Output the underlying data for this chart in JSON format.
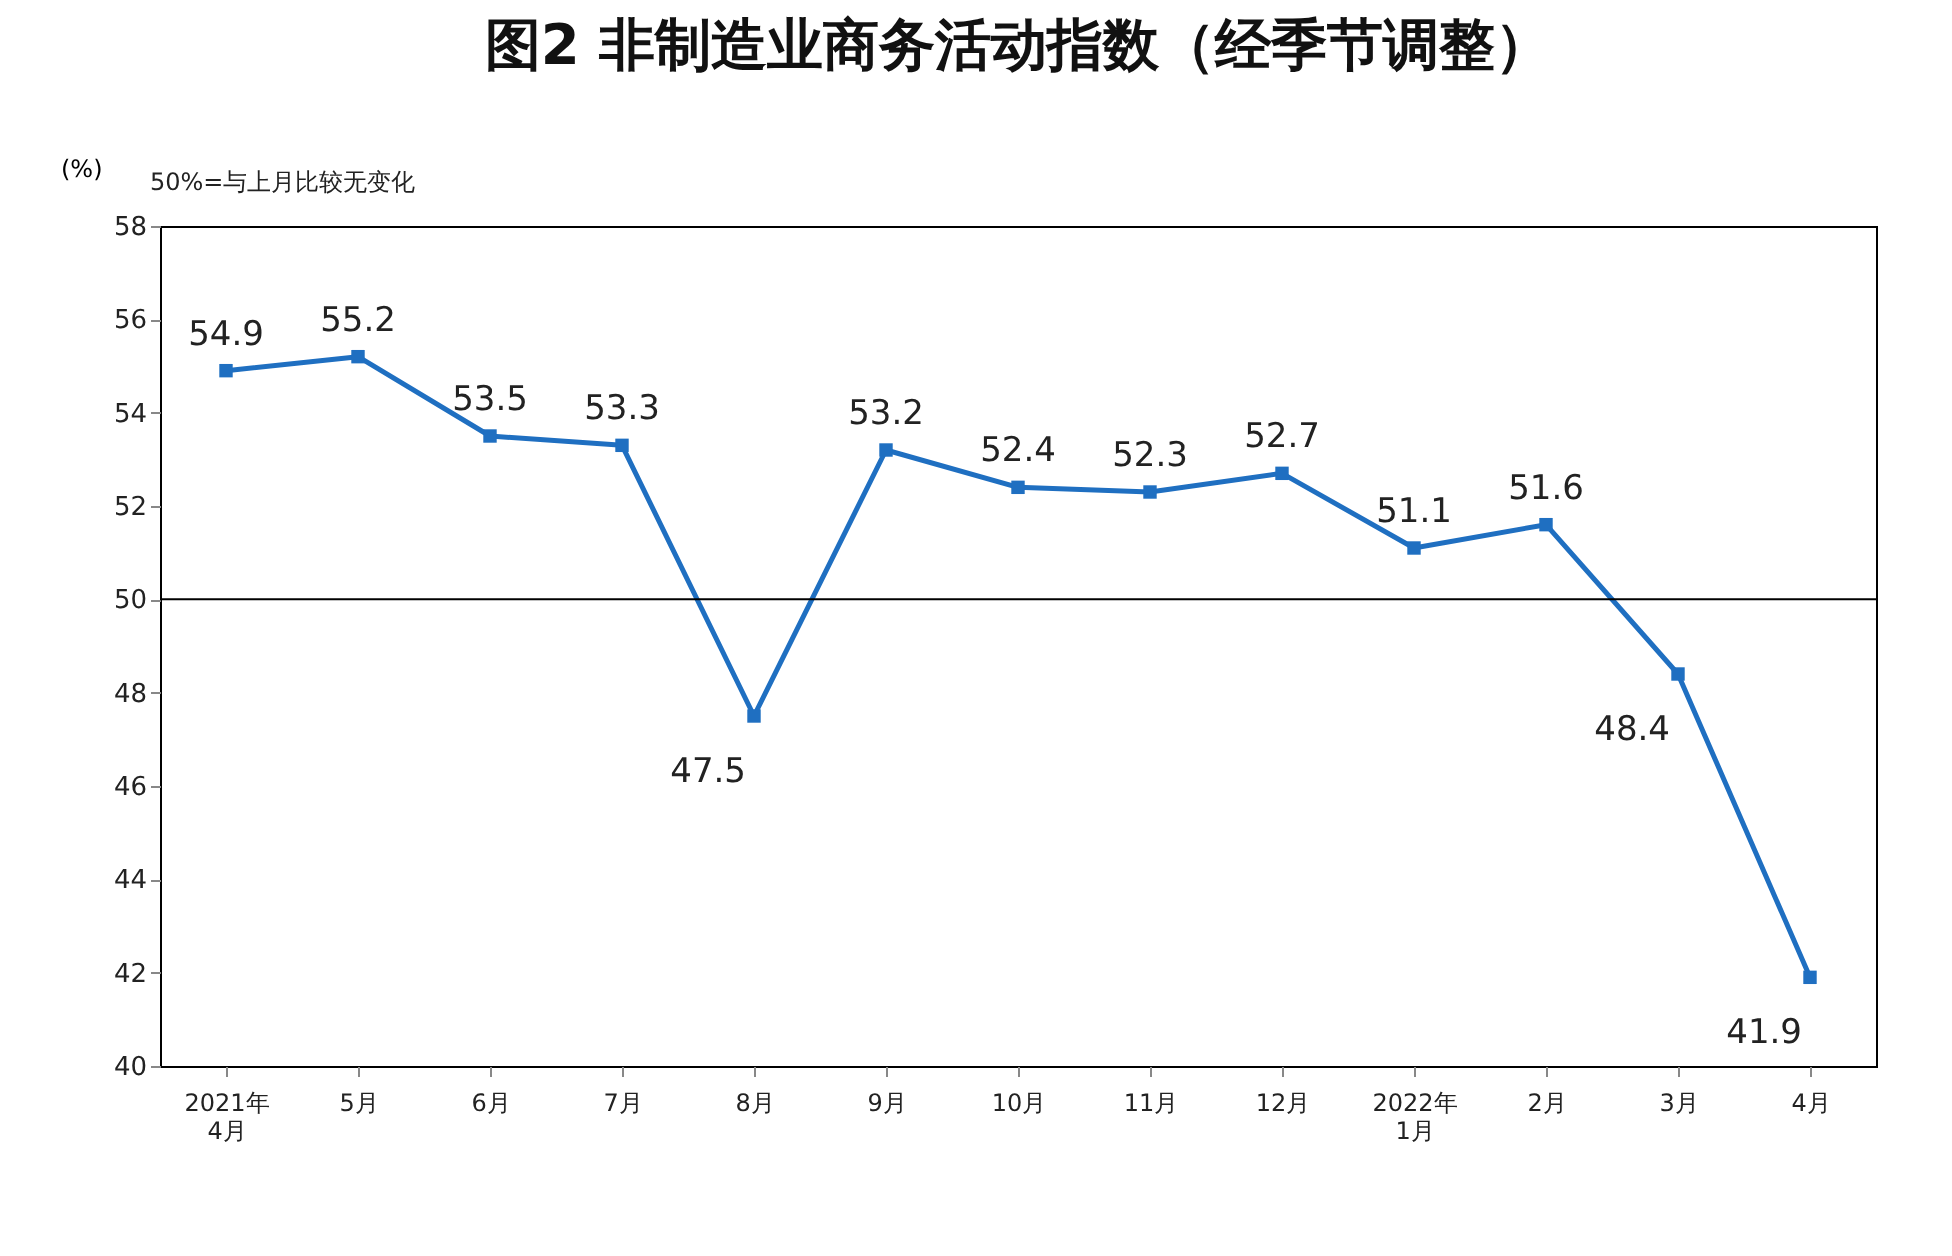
{
  "chart_data": {
    "type": "line",
    "title": "图2 非制造业商务活动指数（经季节调整）",
    "ylabel": "(%)",
    "annotations": [
      "50%=与上月比较无变化"
    ],
    "categories": [
      "2021年\n4月",
      "5月",
      "6月",
      "7月",
      "8月",
      "9月",
      "10月",
      "11月",
      "12月",
      "2022年\n1月",
      "2月",
      "3月",
      "4月"
    ],
    "series": [
      {
        "color": "#1f6fc1",
        "values": [
          54.9,
          55.2,
          53.5,
          53.3,
          47.5,
          53.2,
          52.4,
          52.3,
          52.7,
          51.1,
          51.6,
          48.4,
          41.9
        ]
      }
    ],
    "ylim": [
      40,
      58
    ],
    "yticks": [
      40,
      42,
      44,
      46,
      48,
      50,
      52,
      54,
      56,
      58
    ],
    "ref_lines": [
      {
        "axis": "y",
        "value": 50,
        "color": "#000000"
      }
    ],
    "data_labels": true,
    "marker": "square",
    "grid": false
  }
}
